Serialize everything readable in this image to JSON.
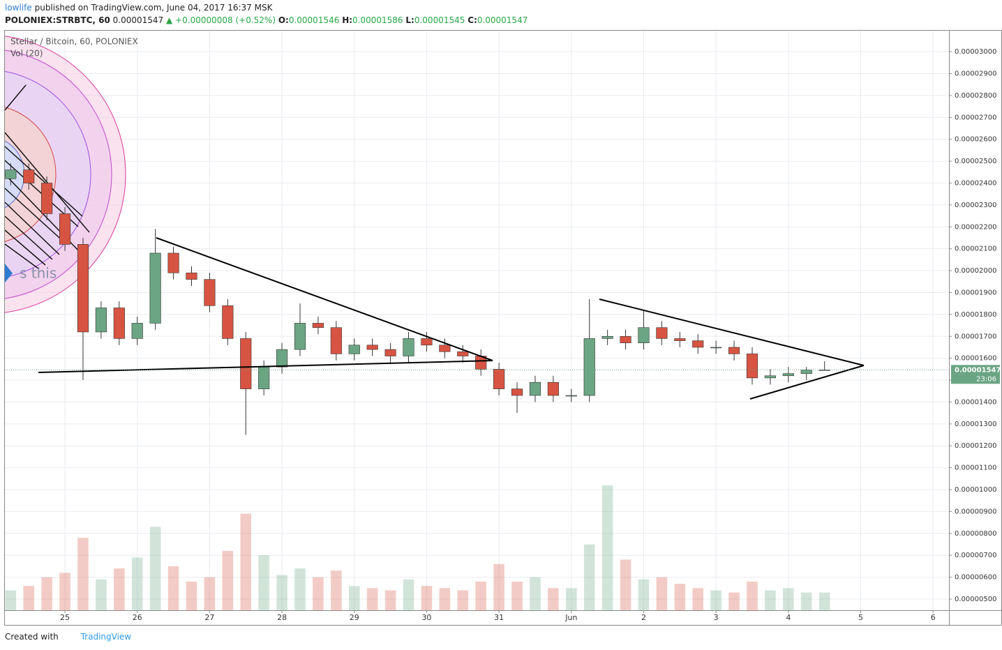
{
  "header": {
    "author": "lowlife",
    "published": "published on TradingView.com, June 04, 2017 16:37 MSK",
    "symbol": "POLONIEX:STRBTC, 60",
    "last": "0.00001547",
    "change": "▲ +0.00000008 (+0.52%)",
    "o_label": "O:",
    "o": "0.00001546",
    "h_label": "H:",
    "h": "0.00001586",
    "l_label": "L:",
    "l": "0.00001545",
    "c_label": "C:",
    "c": "0.00001547"
  },
  "footer": {
    "created": "Created with",
    "brand": "TradingView"
  },
  "chart_data": {
    "type": "candlestick",
    "title": "Stellar / Bitcoin, 60, POLONIEX",
    "volume_label": "Vol (20)",
    "annotation": "s this",
    "last_price_label": "0.00001547",
    "countdown": "23:06",
    "up_color": "#6ba583",
    "down_color": "#d75442",
    "grid": true,
    "xlim": [
      24.17,
      37.22
    ],
    "xticks": [
      25,
      26,
      27,
      28,
      29,
      30,
      31,
      {
        "value": 32,
        "label": "Jun"
      },
      {
        "value": 33,
        "label": "2"
      },
      {
        "value": 34,
        "label": "3"
      },
      {
        "value": 35,
        "label": "4"
      },
      {
        "value": 36,
        "label": "5"
      },
      {
        "value": 37,
        "label": "6"
      }
    ],
    "ylim": [
      4.49e-06,
      3.096e-05
    ],
    "yticks": [
      {
        "value": 5e-06,
        "label": "0.00000500"
      },
      {
        "value": 6e-06,
        "label": "0.00000600"
      },
      {
        "value": 7e-06,
        "label": "0.00000700"
      },
      {
        "value": 8e-06,
        "label": "0.00000800"
      },
      {
        "value": 9e-06,
        "label": "0.00000900"
      },
      {
        "value": 1e-05,
        "label": "0.00001000"
      },
      {
        "value": 1.1e-05,
        "label": "0.00001100"
      },
      {
        "value": 1.2e-05,
        "label": "0.00001200"
      },
      {
        "value": 1.3e-05,
        "label": "0.00001300"
      },
      {
        "value": 1.4e-05,
        "label": "0.00001400"
      },
      {
        "value": 1.5e-05,
        "label": "0.00001500"
      },
      {
        "value": 1.6e-05,
        "label": "0.00001600"
      },
      {
        "value": 1.7e-05,
        "label": "0.00001700"
      },
      {
        "value": 1.8e-05,
        "label": "0.00001800"
      },
      {
        "value": 1.9e-05,
        "label": "0.00001900"
      },
      {
        "value": 2e-05,
        "label": "0.00002000"
      },
      {
        "value": 2.1e-05,
        "label": "0.00002100"
      },
      {
        "value": 2.2e-05,
        "label": "0.00002200"
      },
      {
        "value": 2.3e-05,
        "label": "0.00002300"
      },
      {
        "value": 2.4e-05,
        "label": "0.00002400"
      },
      {
        "value": 2.5e-05,
        "label": "0.00002500"
      },
      {
        "value": 2.6e-05,
        "label": "0.00002600"
      },
      {
        "value": 2.7e-05,
        "label": "0.00002700"
      },
      {
        "value": 2.8e-05,
        "label": "0.00002800"
      },
      {
        "value": 2.9e-05,
        "label": "0.00002900"
      },
      {
        "value": 3e-05,
        "label": "0.00003000"
      }
    ],
    "x": [
      24.25,
      24.5,
      24.75,
      25,
      25.25,
      25.5,
      25.75,
      26,
      26.25,
      26.5,
      26.75,
      27,
      27.25,
      27.5,
      27.75,
      28,
      28.25,
      28.5,
      28.75,
      29,
      29.25,
      29.5,
      29.75,
      30,
      30.25,
      30.5,
      30.75,
      31,
      31.25,
      31.5,
      31.75,
      32,
      32.25,
      32.5,
      32.75,
      33,
      33.25,
      33.5,
      33.75,
      34,
      34.25,
      34.5,
      34.75,
      35,
      35.25,
      35.5
    ],
    "open": [
      2.42e-05,
      2.46e-05,
      2.4e-05,
      2.26e-05,
      2.12e-05,
      1.72e-05,
      1.83e-05,
      1.69e-05,
      1.76e-05,
      2.08e-05,
      1.99e-05,
      1.96e-05,
      1.84e-05,
      1.69e-05,
      1.46e-05,
      1.56e-05,
      1.64e-05,
      1.76e-05,
      1.74e-05,
      1.62e-05,
      1.66e-05,
      1.64e-05,
      1.61e-05,
      1.69e-05,
      1.66e-05,
      1.63e-05,
      1.61e-05,
      1.55e-05,
      1.46e-05,
      1.43e-05,
      1.49e-05,
      1.43e-05,
      1.43e-05,
      1.69e-05,
      1.7e-05,
      1.67e-05,
      1.74e-05,
      1.69e-05,
      1.68e-05,
      1.65e-05,
      1.65e-05,
      1.62e-05,
      1.51e-05,
      1.52e-05,
      1.53e-05,
      1.546e-05
    ],
    "high": [
      2.49e-05,
      2.49e-05,
      2.43e-05,
      2.29e-05,
      2.15e-05,
      1.86e-05,
      1.86e-05,
      1.79e-05,
      2.19e-05,
      2.11e-05,
      2.02e-05,
      1.99e-05,
      1.87e-05,
      1.72e-05,
      1.59e-05,
      1.67e-05,
      1.85e-05,
      1.79e-05,
      1.77e-05,
      1.69e-05,
      1.69e-05,
      1.67e-05,
      1.72e-05,
      1.72e-05,
      1.69e-05,
      1.66e-05,
      1.64e-05,
      1.58e-05,
      1.49e-05,
      1.52e-05,
      1.52e-05,
      1.46e-05,
      1.87e-05,
      1.73e-05,
      1.73e-05,
      1.82e-05,
      1.77e-05,
      1.72e-05,
      1.71e-05,
      1.68e-05,
      1.68e-05,
      1.65e-05,
      1.55e-05,
      1.56e-05,
      1.56e-05,
      1.586e-05
    ],
    "low": [
      2.39e-05,
      2.37e-05,
      2.23e-05,
      2.09e-05,
      1.5e-05,
      1.69e-05,
      1.66e-05,
      1.66e-05,
      1.73e-05,
      1.96e-05,
      1.93e-05,
      1.81e-05,
      1.66e-05,
      1.25e-05,
      1.43e-05,
      1.53e-05,
      1.61e-05,
      1.71e-05,
      1.59e-05,
      1.59e-05,
      1.61e-05,
      1.58e-05,
      1.58e-05,
      1.63e-05,
      1.6e-05,
      1.58e-05,
      1.52e-05,
      1.43e-05,
      1.35e-05,
      1.4e-05,
      1.4e-05,
      1.4e-05,
      1.4e-05,
      1.66e-05,
      1.64e-05,
      1.64e-05,
      1.66e-05,
      1.65e-05,
      1.62e-05,
      1.62e-05,
      1.59e-05,
      1.48e-05,
      1.48e-05,
      1.49e-05,
      1.5e-05,
      1.545e-05
    ],
    "close": [
      2.46e-05,
      2.4e-05,
      2.26e-05,
      2.12e-05,
      1.72e-05,
      1.83e-05,
      1.69e-05,
      1.76e-05,
      2.08e-05,
      1.99e-05,
      1.96e-05,
      1.84e-05,
      1.69e-05,
      1.46e-05,
      1.56e-05,
      1.64e-05,
      1.76e-05,
      1.74e-05,
      1.62e-05,
      1.66e-05,
      1.64e-05,
      1.61e-05,
      1.69e-05,
      1.66e-05,
      1.63e-05,
      1.61e-05,
      1.55e-05,
      1.46e-05,
      1.43e-05,
      1.49e-05,
      1.43e-05,
      1.43e-05,
      1.69e-05,
      1.7e-05,
      1.67e-05,
      1.74e-05,
      1.69e-05,
      1.68e-05,
      1.65e-05,
      1.65e-05,
      1.62e-05,
      1.51e-05,
      1.52e-05,
      1.53e-05,
      1.546e-05,
      1.547e-05
    ],
    "volume": [
      5.4e-06,
      5.6e-06,
      6e-06,
      6.2e-06,
      7.8e-06,
      5.9e-06,
      6.4e-06,
      6.9e-06,
      8.3e-06,
      6.5e-06,
      5.8e-06,
      6e-06,
      7.2e-06,
      8.9e-06,
      7e-06,
      6.1e-06,
      6.4e-06,
      6e-06,
      6.3e-06,
      5.6e-06,
      5.5e-06,
      5.4e-06,
      5.9e-06,
      5.6e-06,
      5.5e-06,
      5.4e-06,
      5.8e-06,
      6.6e-06,
      5.8e-06,
      6e-06,
      5.5e-06,
      5.5e-06,
      7.5e-06,
      1.02e-05,
      6.8e-06,
      5.9e-06,
      6e-06,
      5.7e-06,
      5.5e-06,
      5.4e-06,
      5.3e-06,
      5.8e-06,
      5.4e-06,
      5.5e-06,
      5.3e-06,
      5.3e-06
    ]
  }
}
